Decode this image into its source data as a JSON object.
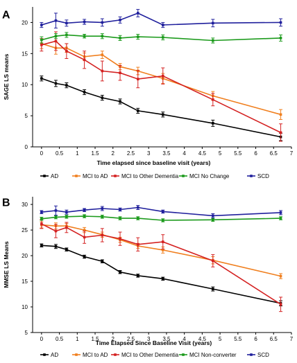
{
  "chart_data": [
    {
      "type": "line",
      "panel_label": "A",
      "title": "",
      "xlabel": "Time elapsed since baseline visit (years)",
      "ylabel": "SAGE LS means",
      "xlim": [
        -0.25,
        7
      ],
      "ylim": [
        0,
        22.5
      ],
      "xticks": [
        "0",
        "0.5",
        "1",
        "1.5",
        "2",
        "2.5",
        "3",
        "3.5",
        "4",
        "4.5",
        "5",
        "5.5",
        "6",
        "6.5",
        "7"
      ],
      "yticks": [
        "0",
        "5",
        "10",
        "15",
        "20"
      ],
      "grid": false,
      "legend_position": "bottom",
      "series": [
        {
          "name": "AD",
          "color": "#000000",
          "x": [
            0,
            0.4,
            0.7,
            1.2,
            1.7,
            2.2,
            2.7,
            3.4,
            4.8,
            6.7
          ],
          "y": [
            11.0,
            10.2,
            9.9,
            8.8,
            7.9,
            7.3,
            5.8,
            5.2,
            3.8,
            1.6
          ],
          "err": [
            0.4,
            0.5,
            0.4,
            0.4,
            0.4,
            0.4,
            0.4,
            0.4,
            0.5,
            0.6
          ]
        },
        {
          "name": "MCI to AD",
          "color": "#f07f1e",
          "x": [
            0,
            0.4,
            0.7,
            1.2,
            1.7,
            2.2,
            2.7,
            3.4,
            4.8,
            6.7
          ],
          "y": [
            16.6,
            15.9,
            15.9,
            14.5,
            14.8,
            12.9,
            12.2,
            11.0,
            8.2,
            5.2
          ],
          "err": [
            0.8,
            1.0,
            0.7,
            0.6,
            0.6,
            0.5,
            0.6,
            0.8,
            0.7,
            0.8
          ]
        },
        {
          "name": "MCI to Other Dementia",
          "color": "#d42121",
          "x": [
            0,
            0.4,
            0.7,
            1.2,
            1.7,
            2.2,
            2.7,
            3.4,
            4.8,
            6.7
          ],
          "y": [
            16.4,
            17.0,
            15.4,
            14.0,
            12.2,
            11.9,
            10.9,
            11.4,
            7.6,
            2.3
          ],
          "err": [
            1.0,
            1.5,
            1.2,
            1.4,
            1.6,
            1.2,
            1.4,
            1.3,
            1.0,
            1.4
          ]
        },
        {
          "name": "MCI No Change",
          "color": "#1b9a1b",
          "x": [
            0,
            0.4,
            0.7,
            1.2,
            1.7,
            2.2,
            2.7,
            3.4,
            4.8,
            6.7
          ],
          "y": [
            17.2,
            17.8,
            18.0,
            17.8,
            17.8,
            17.5,
            17.7,
            17.6,
            17.1,
            17.5
          ],
          "err": [
            0.5,
            0.4,
            0.4,
            0.3,
            0.4,
            0.4,
            0.4,
            0.4,
            0.4,
            0.5
          ]
        },
        {
          "name": "SCD",
          "color": "#1f1f9c",
          "x": [
            0,
            0.4,
            0.7,
            1.2,
            1.7,
            2.2,
            2.7,
            3.4,
            4.8,
            6.7
          ],
          "y": [
            19.6,
            20.3,
            19.9,
            20.1,
            20.0,
            20.4,
            21.5,
            19.6,
            19.9,
            20.0
          ],
          "err": [
            0.4,
            1.2,
            0.5,
            0.4,
            0.6,
            0.5,
            0.6,
            0.4,
            0.6,
            0.6
          ]
        }
      ]
    },
    {
      "type": "line",
      "panel_label": "B",
      "title": "",
      "xlabel": "Time Elapsed Since Baseline Visit (years)",
      "ylabel": "MMSE LS Means",
      "xlim": [
        -0.25,
        7
      ],
      "ylim": [
        5,
        31.5
      ],
      "xticks": [
        "0",
        "0.5",
        "1",
        "1.5",
        "2",
        "2.5",
        "3",
        "3.5",
        "4",
        "4.5",
        "5",
        "5.5",
        "6",
        "6.5",
        "7"
      ],
      "yticks": [
        "5",
        "10",
        "15",
        "20",
        "25",
        "30"
      ],
      "grid": false,
      "legend_position": "bottom",
      "series": [
        {
          "name": "AD",
          "color": "#000000",
          "x": [
            0,
            0.4,
            0.7,
            1.2,
            1.7,
            2.2,
            2.7,
            3.4,
            4.8,
            6.7
          ],
          "y": [
            22.0,
            21.8,
            21.2,
            19.8,
            18.9,
            16.8,
            16.1,
            15.5,
            13.5,
            10.7
          ],
          "err": [
            0.3,
            0.4,
            0.3,
            0.3,
            0.3,
            0.3,
            0.3,
            0.3,
            0.4,
            0.5
          ]
        },
        {
          "name": "MCI to AD",
          "color": "#f07f1e",
          "x": [
            0,
            0.4,
            0.7,
            1.2,
            1.7,
            2.2,
            2.7,
            3.4,
            4.8,
            6.7
          ],
          "y": [
            26.0,
            25.8,
            25.8,
            25.0,
            24.1,
            23.1,
            21.9,
            21.1,
            19.1,
            16.0
          ],
          "err": [
            0.6,
            0.6,
            0.5,
            0.5,
            0.5,
            0.5,
            0.5,
            0.6,
            0.7,
            0.5
          ]
        },
        {
          "name": "MCI to Other Dementia",
          "color": "#d42121",
          "x": [
            0,
            0.4,
            0.7,
            1.2,
            1.7,
            2.2,
            2.7,
            3.4,
            4.8,
            6.7
          ],
          "y": [
            26.2,
            24.8,
            25.5,
            23.6,
            24.0,
            23.3,
            22.2,
            22.7,
            19.0,
            10.5
          ],
          "err": [
            0.9,
            1.3,
            1.0,
            1.2,
            1.3,
            1.3,
            1.3,
            1.4,
            1.2,
            1.4
          ]
        },
        {
          "name": "MCI Non-converter",
          "color": "#1b9a1b",
          "x": [
            0,
            0.4,
            0.7,
            1.2,
            1.7,
            2.2,
            2.7,
            3.4,
            4.8,
            6.7
          ],
          "y": [
            27.2,
            27.5,
            27.6,
            27.7,
            27.6,
            27.3,
            27.3,
            26.9,
            27.0,
            27.3
          ],
          "err": [
            0.3,
            0.3,
            0.3,
            0.3,
            0.3,
            0.3,
            0.3,
            0.3,
            0.3,
            0.3
          ]
        },
        {
          "name": "SCD",
          "color": "#1f1f9c",
          "x": [
            0,
            0.4,
            0.7,
            1.2,
            1.7,
            2.2,
            2.7,
            3.4,
            4.8,
            6.7
          ],
          "y": [
            28.5,
            28.8,
            28.5,
            28.9,
            29.2,
            29.0,
            29.4,
            28.6,
            27.8,
            28.4
          ],
          "err": [
            0.3,
            0.9,
            0.4,
            0.3,
            0.4,
            0.3,
            0.4,
            0.3,
            0.4,
            0.4
          ]
        }
      ]
    }
  ]
}
